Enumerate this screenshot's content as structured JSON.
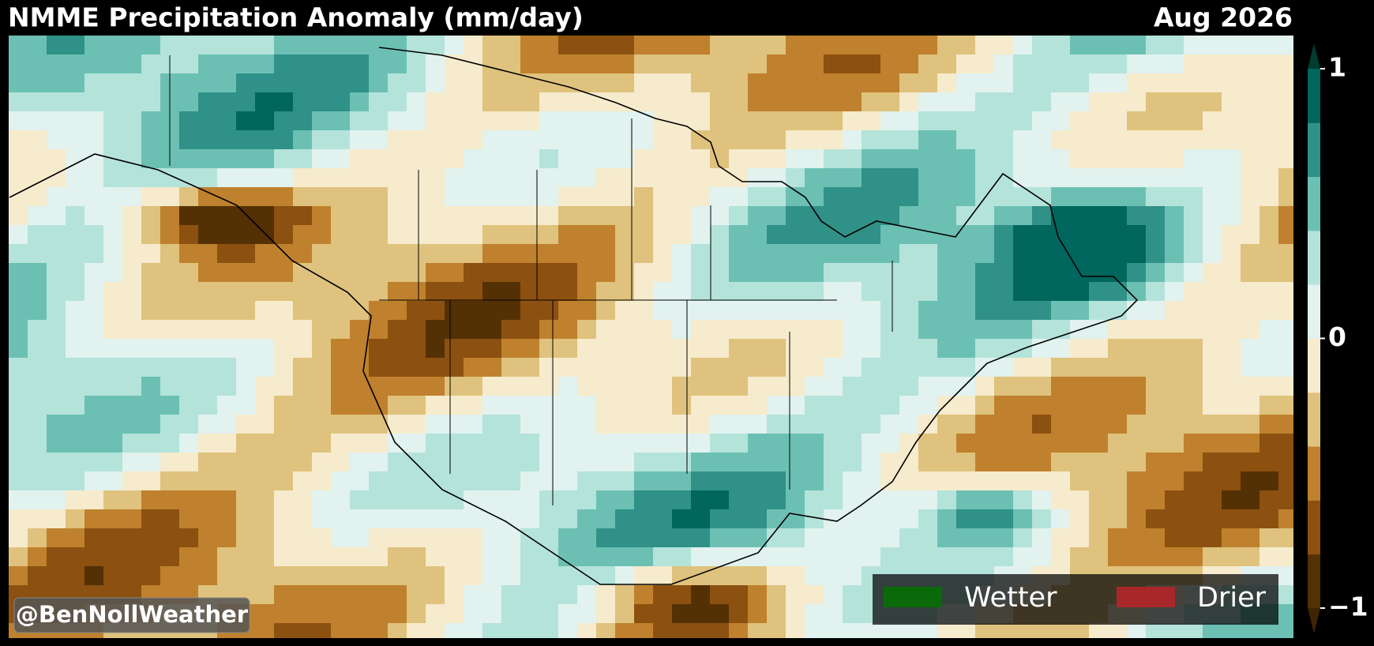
{
  "header": {
    "title": "NMME Precipitation Anomaly (mm/day)",
    "date": "Aug 2026"
  },
  "colorbar": {
    "lim": [
      -1,
      1
    ],
    "ticks": [
      1,
      0,
      {
        "value": -1,
        "label": "−1"
      }
    ],
    "colors": [
      "#543005",
      "#8c5110",
      "#bf812d",
      "#dfc27d",
      "#f6ebcc",
      "#e1f2ef",
      "#b4e3da",
      "#6cc0b3",
      "#2f9188",
      "#01665e"
    ],
    "under_color": "#3f2404",
    "over_color": "#003c30"
  },
  "legend": [
    {
      "label": "Wetter",
      "color": "#0a6a0a"
    },
    {
      "label": "Drier",
      "color": "#a8282a"
    }
  ],
  "watermark": "@BenNollWeather"
}
